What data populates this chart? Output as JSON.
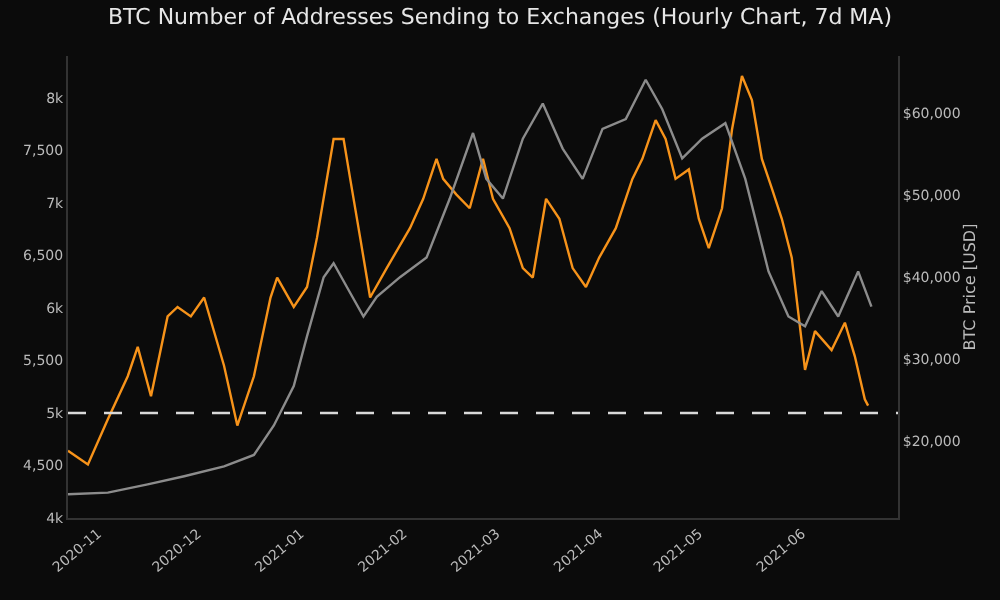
{
  "chart_data": {
    "type": "line",
    "title": "BTC Number of Addresses Sending to Exchanges (Hourly Chart, 7d MA)",
    "y2label": "BTC Price [USD]",
    "xlim": [
      "2020-10-23",
      "2021-06-30"
    ],
    "xticks": [
      {
        "value": "2020-11-01",
        "label": "2020-11"
      },
      {
        "value": "2020-12-01",
        "label": "2020-12"
      },
      {
        "value": "2021-01-01",
        "label": "2021-01"
      },
      {
        "value": "2021-02-01",
        "label": "2021-02"
      },
      {
        "value": "2021-03-01",
        "label": "2021-03"
      },
      {
        "value": "2021-04-01",
        "label": "2021-04"
      },
      {
        "value": "2021-05-01",
        "label": "2021-05"
      },
      {
        "value": "2021-06-01",
        "label": "2021-06"
      }
    ],
    "ylim": [
      4000,
      8400
    ],
    "yticks": [
      {
        "value": 4000,
        "label": "4k"
      },
      {
        "value": 4500,
        "label": "4,500"
      },
      {
        "value": 5000,
        "label": "5k"
      },
      {
        "value": 5500,
        "label": "5,500"
      },
      {
        "value": 6000,
        "label": "6k"
      },
      {
        "value": 6500,
        "label": "6,500"
      },
      {
        "value": 7000,
        "label": "7k"
      },
      {
        "value": 7500,
        "label": "7,500"
      },
      {
        "value": 8000,
        "label": "8k"
      }
    ],
    "y2lim": [
      10600,
      67000
    ],
    "y2ticks": [
      {
        "value": 20000,
        "label": "$20,000"
      },
      {
        "value": 30000,
        "label": "$30,000"
      },
      {
        "value": 40000,
        "label": "$40,000"
      },
      {
        "value": 50000,
        "label": "$50,000"
      },
      {
        "value": 60000,
        "label": "$60,000"
      }
    ],
    "ref_lines": [
      {
        "axis": "y",
        "value": 5000,
        "color": "#d9d9d9",
        "line_style": "dashed"
      }
    ],
    "grid": false,
    "marker": "none",
    "series": [
      {
        "color": "#8c8c8c",
        "axis": "y2",
        "x": [
          "2020-10-23",
          "2020-11-04",
          "2020-11-16",
          "2020-11-27",
          "2020-12-09",
          "2020-12-18",
          "2020-12-24",
          "2020-12-30",
          "2021-01-03",
          "2021-01-08",
          "2021-01-11",
          "2021-01-15",
          "2021-01-20",
          "2021-01-24",
          "2021-01-31",
          "2021-02-08",
          "2021-02-15",
          "2021-02-22",
          "2021-02-26",
          "2021-03-03",
          "2021-03-09",
          "2021-03-15",
          "2021-03-21",
          "2021-03-27",
          "2021-04-02",
          "2021-04-09",
          "2021-04-15",
          "2021-04-20",
          "2021-04-26",
          "2021-05-02",
          "2021-05-09",
          "2021-05-15",
          "2021-05-22",
          "2021-05-28",
          "2021-06-02",
          "2021-06-07",
          "2021-06-12",
          "2021-06-18",
          "2021-06-22"
        ],
        "values": [
          13500,
          13700,
          14700,
          15700,
          16900,
          18300,
          21900,
          26700,
          32800,
          40000,
          41700,
          38800,
          35200,
          37600,
          40000,
          42400,
          49600,
          57600,
          52000,
          49600,
          56900,
          61200,
          55700,
          52000,
          58100,
          59300,
          64100,
          60500,
          54500,
          56900,
          58800,
          52000,
          40700,
          35200,
          34000,
          38300,
          35200,
          40700,
          36400
        ]
      },
      {
        "color": "#f7931a",
        "x": [
          "2020-10-23",
          "2020-10-29",
          "2020-11-04",
          "2020-11-10",
          "2020-11-13",
          "2020-11-17",
          "2020-11-22",
          "2020-11-25",
          "2020-11-29",
          "2020-12-03",
          "2020-12-09",
          "2020-12-13",
          "2020-12-18",
          "2020-12-23",
          "2020-12-25",
          "2020-12-30",
          "2021-01-03",
          "2021-01-06",
          "2021-01-11",
          "2021-01-14",
          "2021-01-16",
          "2021-01-19",
          "2021-01-22",
          "2021-01-27",
          "2021-02-03",
          "2021-02-07",
          "2021-02-11",
          "2021-02-13",
          "2021-02-17",
          "2021-02-21",
          "2021-02-25",
          "2021-02-28",
          "2021-03-05",
          "2021-03-09",
          "2021-03-12",
          "2021-03-16",
          "2021-03-20",
          "2021-03-24",
          "2021-03-28",
          "2021-04-01",
          "2021-04-06",
          "2021-04-11",
          "2021-04-14",
          "2021-04-18",
          "2021-04-21",
          "2021-04-24",
          "2021-04-28",
          "2021-05-01",
          "2021-05-04",
          "2021-05-08",
          "2021-05-11",
          "2021-05-14",
          "2021-05-17",
          "2021-05-20",
          "2021-05-23",
          "2021-05-26",
          "2021-05-29",
          "2021-06-02",
          "2021-06-05",
          "2021-06-10",
          "2021-06-14",
          "2021-06-17",
          "2021-06-20",
          "2021-06-21"
        ],
        "values": [
          4640,
          4510,
          4940,
          5350,
          5630,
          5160,
          5920,
          6010,
          5920,
          6100,
          5450,
          4880,
          5350,
          6100,
          6290,
          6010,
          6200,
          6670,
          7610,
          7610,
          7230,
          6670,
          6100,
          6380,
          6760,
          7040,
          7420,
          7230,
          7080,
          6950,
          7420,
          7040,
          6760,
          6380,
          6290,
          7040,
          6850,
          6380,
          6200,
          6480,
          6760,
          7230,
          7420,
          7790,
          7610,
          7230,
          7320,
          6850,
          6570,
          6950,
          7700,
          8210,
          7980,
          7420,
          7140,
          6850,
          6480,
          5410,
          5780,
          5600,
          5860,
          5540,
          5130,
          5070
        ]
      }
    ]
  }
}
